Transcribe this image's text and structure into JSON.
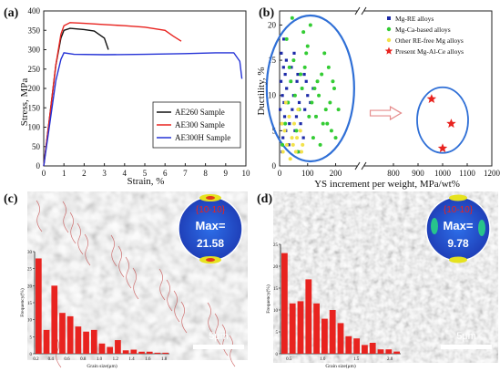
{
  "panels": {
    "a": {
      "label": "(a)"
    },
    "b": {
      "label": "(b)"
    },
    "c": {
      "label": "(c)",
      "pole_label": "{10-10}",
      "max_label": "Max=",
      "max_value": "21.58",
      "scale_bar": "5μm"
    },
    "d": {
      "label": "(d)",
      "pole_label": "{10-10}",
      "max_label": "Max=",
      "max_value": "9.78",
      "scale_bar": "5μm"
    }
  },
  "chart_data": [
    {
      "id": "a",
      "type": "line",
      "xlabel": "Strain, %",
      "ylabel": "Stress, MPa",
      "xlim": [
        0,
        10
      ],
      "ylim": [
        0,
        400
      ],
      "xticks": [
        "0",
        "1",
        "2",
        "3",
        "4",
        "5",
        "6",
        "7",
        "8",
        "9",
        "10"
      ],
      "yticks": [
        "0",
        "50",
        "100",
        "150",
        "200",
        "250",
        "300",
        "350",
        "400"
      ],
      "legend_position": "bottom-right",
      "series": [
        {
          "name": "AE260 Sample",
          "color": "#111111",
          "x": [
            0,
            0.3,
            0.6,
            0.85,
            1.0,
            1.3,
            2.0,
            2.5,
            3.0,
            3.2
          ],
          "y": [
            0,
            130,
            260,
            330,
            350,
            355,
            352,
            348,
            330,
            300
          ]
        },
        {
          "name": "AE300 Sample",
          "color": "#e8231f",
          "x": [
            0,
            0.3,
            0.6,
            0.85,
            1.0,
            1.3,
            2.0,
            3.0,
            4.0,
            5.0,
            6.0,
            6.4,
            6.8
          ],
          "y": [
            0,
            130,
            260,
            340,
            362,
            370,
            368,
            365,
            362,
            358,
            350,
            335,
            322
          ]
        },
        {
          "name": "AE300H Sample",
          "color": "#2432d6",
          "x": [
            0,
            0.3,
            0.6,
            0.85,
            1.0,
            1.5,
            3.0,
            5.0,
            7.0,
            8.5,
            9.4,
            9.7,
            9.8
          ],
          "y": [
            0,
            110,
            220,
            275,
            292,
            288,
            287,
            288,
            290,
            292,
            292,
            270,
            225
          ]
        }
      ]
    },
    {
      "id": "b",
      "type": "scatter",
      "xlabel": "YS increment per weight, MPa/wt%",
      "ylabel": "Ductility, %",
      "xticks": [
        "0",
        "100",
        "200",
        "800",
        "900",
        "1000",
        "1100",
        "1200"
      ],
      "yticks": [
        "0",
        "5",
        "10",
        "15",
        "20"
      ],
      "axis_break": [
        260,
        700
      ],
      "legend_position": "top-right",
      "series": [
        {
          "name": "Mg-RE alloys",
          "marker": "square",
          "color": "#1c2aa8",
          "x": [
            2,
            5,
            8,
            10,
            12,
            14,
            16,
            18,
            20,
            22,
            25,
            28,
            30,
            35,
            40,
            45,
            50,
            55,
            60,
            65,
            70,
            75,
            80,
            85,
            90,
            95,
            100,
            110,
            120,
            130,
            6,
            9,
            15,
            24,
            33,
            42,
            52,
            62,
            72,
            88
          ],
          "y": [
            8,
            12,
            6,
            10,
            4,
            14,
            9,
            7,
            13,
            5,
            11,
            3,
            9,
            6,
            12,
            8,
            10,
            5,
            7,
            13,
            9,
            6,
            11,
            4,
            8,
            12,
            10,
            9,
            11,
            7,
            16,
            2,
            18,
            15,
            3,
            14,
            16,
            12,
            2,
            13
          ]
        },
        {
          "name": "Mg-Ca-based alloys",
          "marker": "circle",
          "color": "#33cc33",
          "x": [
            10,
            20,
            30,
            40,
            50,
            60,
            70,
            80,
            90,
            100,
            110,
            120,
            130,
            140,
            150,
            160,
            170,
            180,
            190,
            200,
            25,
            45,
            65,
            85,
            105,
            125,
            145,
            165,
            185,
            35,
            55,
            75,
            95,
            115,
            135,
            155,
            175,
            195,
            210
          ],
          "y": [
            3,
            6,
            9,
            12,
            15,
            5,
            8,
            11,
            14,
            17,
            20,
            4,
            7,
            10,
            13,
            16,
            6,
            9,
            12,
            4,
            18,
            21,
            2,
            19,
            7,
            11,
            3,
            8,
            5,
            14,
            10,
            13,
            16,
            9,
            12,
            6,
            14,
            11,
            8
          ]
        },
        {
          "name": "Other RE-free Mg alloys",
          "marker": "circle",
          "color": "#f2e24a",
          "x": [
            12,
            18,
            26,
            34,
            44,
            52,
            58,
            66,
            74,
            82,
            8,
            22,
            38,
            48,
            62,
            78
          ],
          "y": [
            2,
            5,
            3,
            7,
            4,
            6,
            2,
            8,
            5,
            3,
            6,
            9,
            1,
            3,
            4,
            2
          ]
        },
        {
          "name": "Present Mg-Al-Ce alloys",
          "marker": "star",
          "color": "#e8231f",
          "x": [
            955,
            1035,
            1000
          ],
          "y": [
            9.5,
            6.0,
            2.5
          ]
        }
      ]
    },
    {
      "id": "c",
      "type": "bar",
      "xlabel": "Grain size(μm)",
      "ylabel": "Frequency(%)",
      "xticks": [
        "0.2",
        "0.4",
        "0.6",
        "0.8",
        "1.0",
        "1.2",
        "1.4",
        "1.6",
        "1.8"
      ],
      "yticks": [
        "0",
        "5",
        "10",
        "15",
        "20",
        "25",
        "30"
      ],
      "ylim": [
        0,
        30
      ],
      "color": "#e8231f",
      "values": [
        28,
        7,
        20,
        12,
        11,
        8,
        6.5,
        7,
        3,
        2,
        4,
        1,
        1.2,
        0.6,
        0.6,
        0.3,
        0.3
      ]
    },
    {
      "id": "d",
      "type": "bar",
      "xlabel": "Grain size(μm)",
      "ylabel": "Frequency(%)",
      "xticks": [
        "0.5",
        "1.0",
        "1.5",
        "2.0"
      ],
      "yticks": [
        "0",
        "5",
        "10",
        "15",
        "20",
        "25"
      ],
      "ylim": [
        0,
        25
      ],
      "color": "#e8231f",
      "values": [
        23,
        11.5,
        12,
        17,
        11.5,
        8,
        10,
        7,
        4,
        3.5,
        2,
        2.5,
        1,
        1,
        0.5
      ]
    }
  ]
}
